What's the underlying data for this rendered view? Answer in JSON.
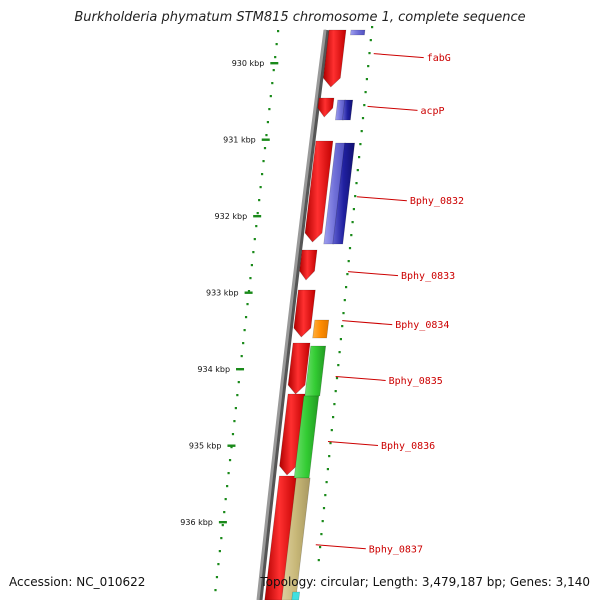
{
  "header": {
    "title": "Burkholderia phymatum STM815 chromosome 1, complete sequence"
  },
  "footer": {
    "accession": "Accession: NC_010622",
    "summary": "Topology: circular; Length: 3,479,187 bp; Genes: 3,140"
  },
  "colors": {
    "backbone": "#8a8a8a",
    "ticks": "#1a8a1a",
    "gene_label": "#cc0000",
    "forward_strand": "#e31a1c",
    "cds_dark_blue": "#1f1f8f",
    "cds_light_blue": "#8080e0",
    "cds_orange": "#ff9a00",
    "cds_green": "#33cc33",
    "cds_tan": "#c8b878",
    "cds_cyan": "#40e0e0"
  },
  "scale": {
    "ticks": [
      {
        "label": "930 kbp",
        "pos": 930
      },
      {
        "label": "931 kbp",
        "pos": 931
      },
      {
        "label": "932 kbp",
        "pos": 932
      },
      {
        "label": "933 kbp",
        "pos": 933
      },
      {
        "label": "934 kbp",
        "pos": 934
      },
      {
        "label": "935 kbp",
        "pos": 935
      },
      {
        "label": "936 kbp",
        "pos": 936
      }
    ]
  },
  "genes": [
    {
      "label": "fabG",
      "pos": 929.93
    },
    {
      "label": "acpP",
      "pos": 930.62
    },
    {
      "label": "Bphy_0832",
      "pos": 931.8
    },
    {
      "label": "Bphy_0833",
      "pos": 932.78
    },
    {
      "label": "Bphy_0834",
      "pos": 933.42
    },
    {
      "label": "Bphy_0835",
      "pos": 934.15
    },
    {
      "label": "Bphy_0836",
      "pos": 935.0
    },
    {
      "label": "Bphy_0837",
      "pos": 936.35
    }
  ]
}
